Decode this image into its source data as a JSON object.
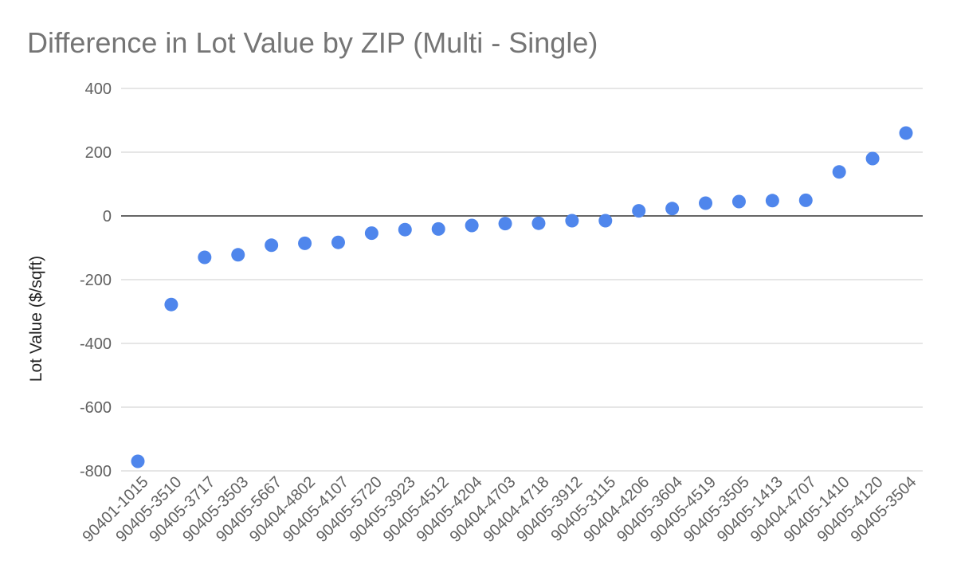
{
  "chart_data": {
    "type": "scatter",
    "title": "Difference in Lot Value by ZIP (Multi - Single)",
    "xlabel": "",
    "ylabel": "Lot Value ($/sqft)",
    "ylim": [
      -800,
      400
    ],
    "yticks": [
      400,
      200,
      0,
      -200,
      -400,
      -600,
      -800
    ],
    "grid": true,
    "legend": "none",
    "point_color": "#4f86ec",
    "categories": [
      "90401-1015",
      "90405-3510",
      "90405-3717",
      "90405-3503",
      "90405-5667",
      "90404-4802",
      "90405-4107",
      "90405-5720",
      "90405-3923",
      "90405-4512",
      "90405-4204",
      "90404-4703",
      "90404-4718",
      "90405-3912",
      "90405-3115",
      "90404-4206",
      "90405-3604",
      "90405-4519",
      "90405-3505",
      "90405-1413",
      "90404-4707",
      "90405-1410",
      "90405-4120",
      "90405-3504"
    ],
    "series": [
      {
        "values": [
          -770,
          -278,
          -130,
          -122,
          -92,
          -86,
          -83,
          -54,
          -43,
          -41,
          -30,
          -24,
          -23,
          -15,
          -15,
          16,
          23,
          40,
          45,
          48,
          49,
          138,
          180,
          260
        ]
      }
    ]
  }
}
